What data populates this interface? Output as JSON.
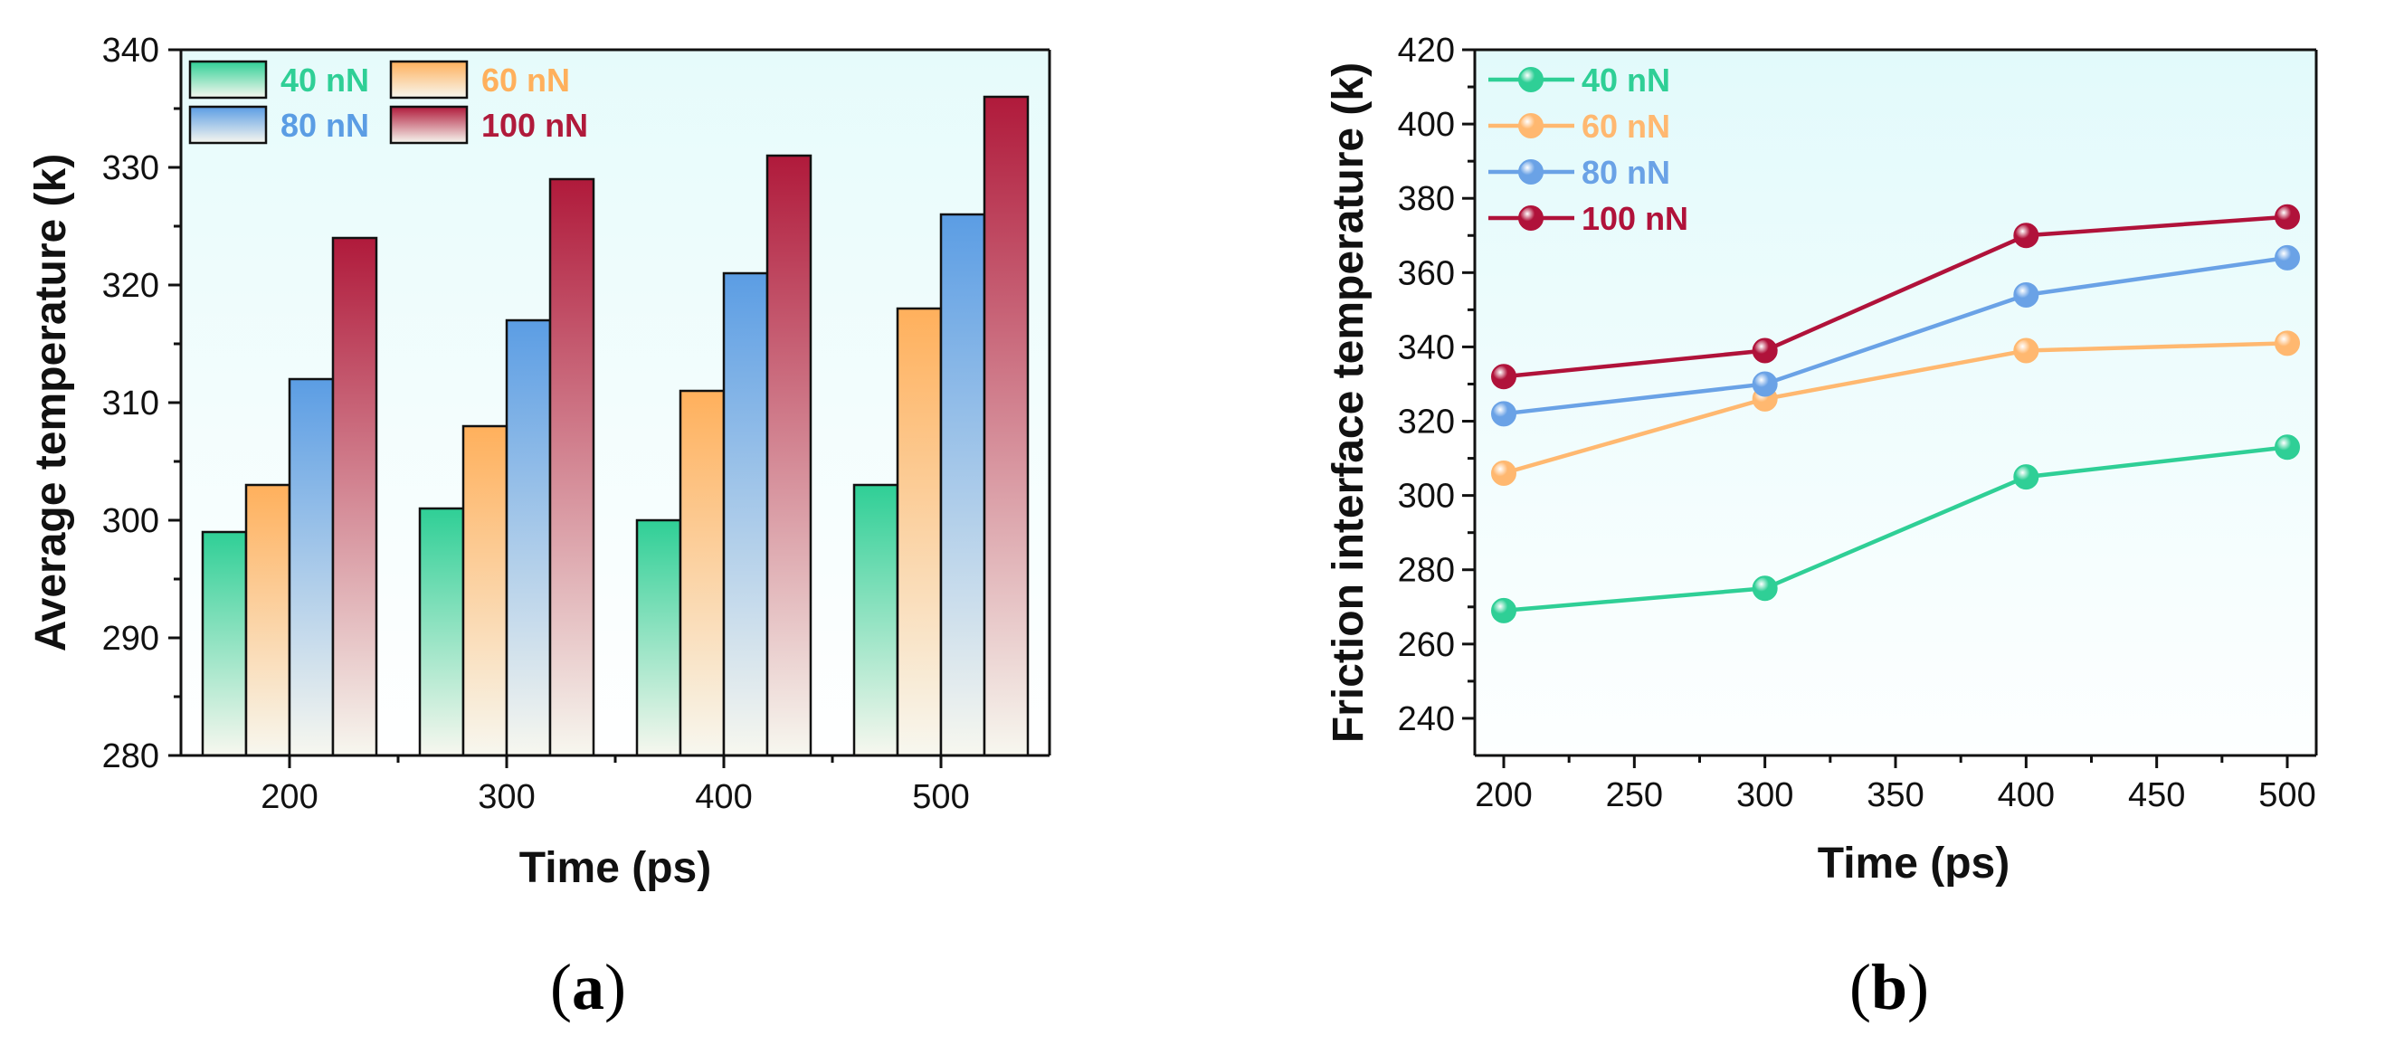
{
  "chart_data": [
    {
      "type": "bar",
      "panel_label": "(a)",
      "caption_letter": "a",
      "xlabel": "Time (ps)",
      "ylabel": "Average temperature (k)",
      "categories": [
        "200",
        "300",
        "400",
        "500"
      ],
      "ylim": [
        280,
        340
      ],
      "yticks": [
        280,
        290,
        300,
        310,
        320,
        330,
        340
      ],
      "series": [
        {
          "name": "40 nN",
          "color": "#2fcf96",
          "values": [
            299,
            301,
            300,
            303
          ]
        },
        {
          "name": "60 nN",
          "color": "#ffb05c",
          "values": [
            303,
            308,
            311,
            318
          ]
        },
        {
          "name": "80 nN",
          "color": "#5b9de4",
          "values": [
            312,
            317,
            321,
            326
          ]
        },
        {
          "name": "100 nN",
          "color": "#b01a3b",
          "values": [
            324,
            329,
            331,
            336
          ]
        }
      ],
      "legend": "top-left, two columns",
      "grid": false
    },
    {
      "type": "line",
      "panel_label": "(b)",
      "caption_letter": "b",
      "xlabel": "Time (ps)",
      "ylabel": "Friction interface temperature (k)",
      "x": [
        200,
        300,
        400,
        500
      ],
      "xlim": [
        200,
        500
      ],
      "xticks": [
        200,
        250,
        300,
        350,
        400,
        450,
        500
      ],
      "ylim": [
        230,
        420
      ],
      "yticks": [
        240,
        260,
        280,
        300,
        320,
        340,
        360,
        380,
        400,
        420
      ],
      "series": [
        {
          "name": "40 nN",
          "color": "#2fcf96",
          "values": [
            269,
            275,
            305,
            313
          ]
        },
        {
          "name": "60 nN",
          "color": "#ffb870",
          "values": [
            306,
            326,
            339,
            341
          ]
        },
        {
          "name": "80 nN",
          "color": "#6aa2e6",
          "values": [
            322,
            330,
            354,
            364
          ]
        },
        {
          "name": "100 nN",
          "color": "#b0123a",
          "values": [
            332,
            339,
            370,
            375
          ]
        }
      ],
      "legend": "top-left",
      "grid": false
    }
  ]
}
